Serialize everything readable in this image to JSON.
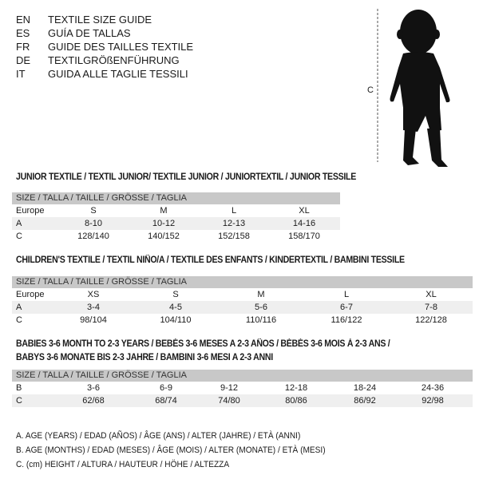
{
  "languages": [
    {
      "code": "EN",
      "text": "TEXTILE SIZE GUIDE"
    },
    {
      "code": "ES",
      "text": "GUÍA DE TALLAS"
    },
    {
      "code": "FR",
      "text": "GUIDE DES TAILLES TEXTILE"
    },
    {
      "code": "DE",
      "text": "TEXTILGRÖßENFÜHRUNG"
    },
    {
      "code": "IT",
      "text": "GUIDA ALLE TAGLIE TESSILI"
    }
  ],
  "figure": {
    "measure_label": "C"
  },
  "size_header": "SIZE / TALLA / TAILLE / GRÖSSE / TAGLIA",
  "junior": {
    "title": "JUNIOR TEXTILE / TEXTIL JUNIOR/ TEXTILE JUNIOR / JUNIORTEXTIL / JUNIOR TESSILE",
    "rows": [
      {
        "label": "Europe",
        "values": [
          "S",
          "M",
          "L",
          "XL"
        ]
      },
      {
        "label": "A",
        "values": [
          "8-10",
          "10-12",
          "12-13",
          "14-16"
        ]
      },
      {
        "label": "C",
        "values": [
          "128/140",
          "140/152",
          "152/158",
          "158/170"
        ]
      }
    ]
  },
  "children": {
    "title": "CHILDREN'S TEXTILE / TEXTIL NIÑO/A / TEXTILE DES ENFANTS / KINDERTEXTIL / BAMBINI TESSILE",
    "rows": [
      {
        "label": "Europe",
        "values": [
          "XS",
          "S",
          "M",
          "L",
          "XL"
        ]
      },
      {
        "label": "A",
        "values": [
          "3-4",
          "4-5",
          "5-6",
          "6-7",
          "7-8"
        ]
      },
      {
        "label": "C",
        "values": [
          "98/104",
          "104/110",
          "110/116",
          "116/122",
          "122/128"
        ]
      }
    ]
  },
  "babies": {
    "title_line1": "BABIES 3-6 MONTH TO 2-3 YEARS / BEBÉS 3-6 MESES A 2-3 AÑOS / BÉBÉS 3-6 MOIS À 2-3 ANS /",
    "title_line2": "BABYS 3-6 MONATE BIS 2-3 JAHRE / BAMBINI 3-6 MESI A 2-3 ANNI",
    "rows": [
      {
        "label": "B",
        "values": [
          "3-6",
          "6-9",
          "9-12",
          "12-18",
          "18-24",
          "24-36"
        ]
      },
      {
        "label": "C",
        "values": [
          "62/68",
          "68/74",
          "74/80",
          "80/86",
          "86/92",
          "92/98"
        ]
      }
    ]
  },
  "legend": [
    "A. AGE (YEARS) / EDAD (AÑOS) / ÂGE (ANS) / ALTER (JAHRE) / ETÀ (ANNI)",
    "B. AGE (MONTHS) / EDAD (MESES) / ÂGE (MOIS) / ALTER (MONATE) / ETÀ (MESI)",
    "C. (cm) HEIGHT / ALTURA / HAUTEUR / HÖHE / ALTEZZA"
  ]
}
